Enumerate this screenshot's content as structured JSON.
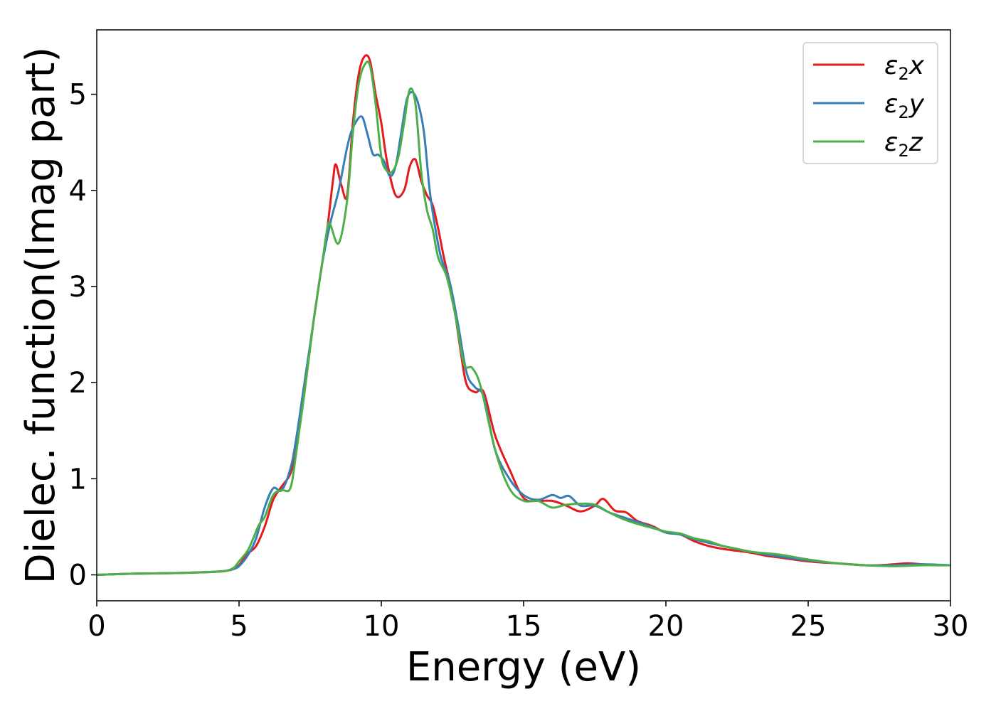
{
  "chart_data": {
    "type": "line",
    "title": "",
    "xlabel": "Energy (eV)",
    "ylabel": "Dielec. function(Imag part)",
    "xlim": [
      0,
      30
    ],
    "ylim": [
      -0.27,
      5.67
    ],
    "xticks": [
      0,
      5,
      10,
      15,
      20,
      25,
      30
    ],
    "yticks": [
      0,
      1,
      2,
      3,
      4,
      5
    ],
    "grid": false,
    "legend_position": "top-right",
    "series": [
      {
        "name": "ε2x",
        "symbol": "ε",
        "sub": "2",
        "axis": "x",
        "color": "#e41a1c",
        "x": [
          0,
          1,
          2,
          3,
          4,
          4.5,
          4.8,
          5.0,
          5.3,
          5.6,
          5.9,
          6.2,
          6.5,
          6.8,
          7.0,
          7.3,
          7.6,
          7.9,
          8.1,
          8.3,
          8.4,
          8.6,
          8.8,
          9.0,
          9.2,
          9.4,
          9.6,
          9.8,
          10.0,
          10.2,
          10.5,
          10.8,
          11.0,
          11.2,
          11.4,
          11.6,
          11.8,
          12.0,
          12.2,
          12.5,
          12.8,
          13.0,
          13.3,
          13.6,
          14.0,
          14.5,
          15.0,
          15.5,
          16.0,
          16.5,
          17.0,
          17.5,
          17.8,
          18.2,
          18.6,
          19.0,
          19.5,
          20.0,
          20.5,
          21.0,
          21.5,
          22.0,
          22.5,
          23.0,
          23.5,
          24.0,
          25.0,
          26.0,
          27.0,
          27.5,
          28.0,
          28.5,
          29.0,
          29.5,
          30.0
        ],
        "values": [
          0.0,
          0.01,
          0.015,
          0.02,
          0.03,
          0.04,
          0.06,
          0.1,
          0.22,
          0.3,
          0.5,
          0.78,
          0.92,
          1.05,
          1.3,
          1.9,
          2.6,
          3.2,
          3.6,
          4.1,
          4.27,
          4.05,
          3.95,
          4.7,
          5.2,
          5.39,
          5.35,
          5.0,
          4.7,
          4.3,
          3.95,
          4.0,
          4.25,
          4.32,
          4.1,
          3.95,
          3.85,
          3.6,
          3.3,
          2.9,
          2.3,
          1.98,
          1.9,
          1.9,
          1.45,
          1.1,
          0.8,
          0.77,
          0.77,
          0.72,
          0.66,
          0.72,
          0.79,
          0.67,
          0.65,
          0.56,
          0.51,
          0.44,
          0.42,
          0.35,
          0.3,
          0.27,
          0.25,
          0.23,
          0.2,
          0.18,
          0.14,
          0.12,
          0.1,
          0.1,
          0.11,
          0.12,
          0.11,
          0.1,
          0.1
        ]
      },
      {
        "name": "ε2y",
        "symbol": "ε",
        "sub": "2",
        "axis": "y",
        "color": "#377eb8",
        "x": [
          0,
          1,
          2,
          3,
          4,
          4.5,
          4.8,
          5.0,
          5.3,
          5.6,
          5.9,
          6.2,
          6.5,
          6.8,
          7.0,
          7.3,
          7.6,
          7.9,
          8.2,
          8.5,
          8.8,
          9.0,
          9.3,
          9.5,
          9.7,
          9.9,
          10.1,
          10.3,
          10.5,
          10.7,
          10.9,
          11.1,
          11.3,
          11.5,
          11.7,
          11.9,
          12.1,
          12.4,
          12.7,
          13.0,
          13.3,
          13.6,
          14.0,
          14.5,
          15.0,
          15.5,
          16.0,
          16.3,
          16.6,
          17.0,
          17.5,
          18.0,
          18.5,
          19.0,
          19.5,
          20.0,
          20.5,
          21.0,
          22.0,
          23.0,
          24.0,
          25.0,
          26.0,
          27.0,
          28.0,
          29.0,
          30.0
        ],
        "values": [
          0.0,
          0.01,
          0.015,
          0.02,
          0.03,
          0.04,
          0.06,
          0.09,
          0.2,
          0.38,
          0.7,
          0.9,
          0.88,
          1.1,
          1.4,
          2.0,
          2.6,
          3.2,
          3.65,
          4.0,
          4.45,
          4.65,
          4.77,
          4.6,
          4.38,
          4.37,
          4.3,
          4.15,
          4.25,
          4.6,
          4.95,
          5.02,
          4.9,
          4.6,
          4.0,
          3.6,
          3.3,
          3.05,
          2.6,
          2.1,
          1.95,
          1.85,
          1.3,
          1.0,
          0.83,
          0.78,
          0.83,
          0.8,
          0.82,
          0.72,
          0.72,
          0.65,
          0.6,
          0.55,
          0.5,
          0.44,
          0.42,
          0.37,
          0.3,
          0.24,
          0.19,
          0.15,
          0.12,
          0.1,
          0.1,
          0.11,
          0.1
        ]
      },
      {
        "name": "ε2z",
        "symbol": "ε",
        "sub": "2",
        "axis": "z",
        "color": "#4daf4a",
        "x": [
          0,
          1,
          2,
          3,
          4,
          4.5,
          4.8,
          5.0,
          5.3,
          5.5,
          5.7,
          5.9,
          6.2,
          6.5,
          6.8,
          7.0,
          7.3,
          7.6,
          7.9,
          8.1,
          8.2,
          8.5,
          8.8,
          9.0,
          9.2,
          9.4,
          9.6,
          9.8,
          10.0,
          10.2,
          10.4,
          10.6,
          10.8,
          11.0,
          11.2,
          11.4,
          11.6,
          11.8,
          12.0,
          12.3,
          12.6,
          12.9,
          13.2,
          13.5,
          14.0,
          14.5,
          15.0,
          15.5,
          16.0,
          16.5,
          17.0,
          17.5,
          18.0,
          18.5,
          19.0,
          19.5,
          20.0,
          20.5,
          21.0,
          21.5,
          22.0,
          22.5,
          23.0,
          24.0,
          25.0,
          26.0,
          27.0,
          28.0,
          29.0,
          30.0
        ],
        "values": [
          0.0,
          0.01,
          0.015,
          0.02,
          0.03,
          0.04,
          0.07,
          0.14,
          0.25,
          0.38,
          0.52,
          0.6,
          0.83,
          0.88,
          0.9,
          1.25,
          1.9,
          2.6,
          3.2,
          3.6,
          3.65,
          3.45,
          3.9,
          4.6,
          5.1,
          5.3,
          5.3,
          4.9,
          4.35,
          4.2,
          4.2,
          4.35,
          4.7,
          5.05,
          4.9,
          4.2,
          3.8,
          3.6,
          3.3,
          3.1,
          2.7,
          2.2,
          2.15,
          1.95,
          1.3,
          0.9,
          0.77,
          0.77,
          0.7,
          0.73,
          0.74,
          0.73,
          0.65,
          0.58,
          0.53,
          0.49,
          0.45,
          0.43,
          0.38,
          0.35,
          0.3,
          0.27,
          0.24,
          0.21,
          0.16,
          0.12,
          0.1,
          0.09,
          0.1,
          0.1
        ]
      }
    ]
  }
}
